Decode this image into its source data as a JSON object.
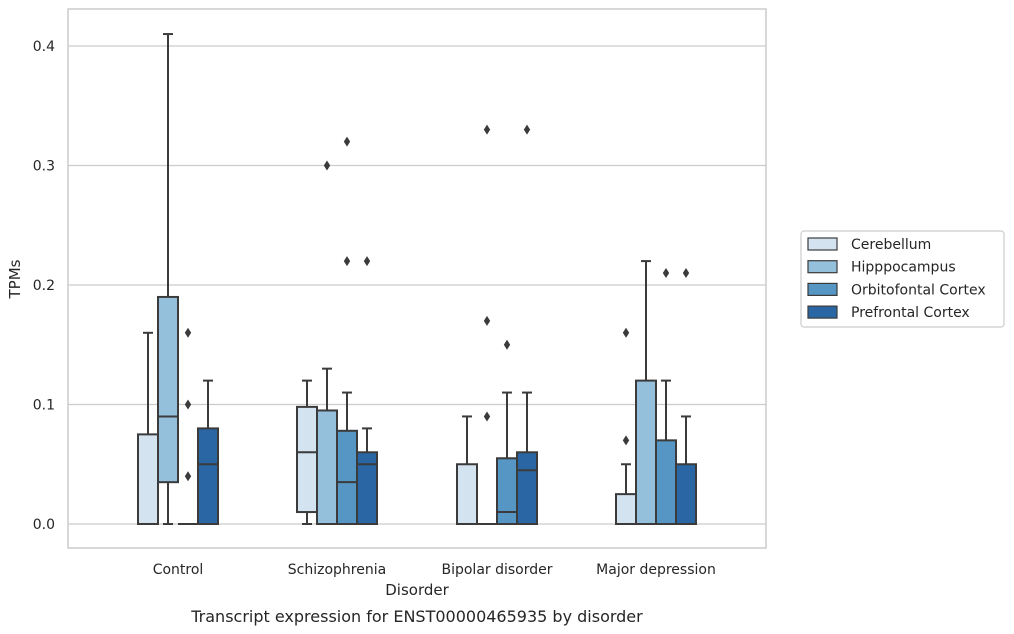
{
  "chart_data": {
    "type": "box",
    "xlabel": "Disorder",
    "ylabel": "TPMs",
    "caption": "Transcript expression for ENST00000465935 by disorder",
    "ylim": [
      -0.02,
      0.43
    ],
    "yticks": [
      0.0,
      0.1,
      0.2,
      0.3,
      0.4
    ],
    "ytick_labels": [
      "0.0",
      "0.1",
      "0.2",
      "0.3",
      "0.4"
    ],
    "grid": "horizontal",
    "legend_position": "right",
    "categories": [
      "Control",
      "Schizophrenia",
      "Bipolar disorder",
      "Major depression"
    ],
    "series": [
      {
        "name": "Cerebellum",
        "color": "#d4e3f0",
        "boxes": [
          {
            "min": 0.0,
            "q1": 0.0,
            "median": 0.0,
            "q3": 0.075,
            "max": 0.16,
            "outliers": []
          },
          {
            "min": 0.0,
            "q1": 0.01,
            "median": 0.06,
            "q3": 0.098,
            "max": 0.12,
            "outliers": []
          },
          {
            "min": 0.0,
            "q1": 0.0,
            "median": 0.0,
            "q3": 0.05,
            "max": 0.09,
            "outliers": []
          },
          {
            "min": 0.0,
            "q1": 0.0,
            "median": 0.0,
            "q3": 0.025,
            "max": 0.05,
            "outliers": [
              0.07,
              0.16
            ]
          }
        ]
      },
      {
        "name": "Hipppocampus",
        "color": "#95c0dc",
        "boxes": [
          {
            "min": 0.0,
            "q1": 0.035,
            "median": 0.09,
            "q3": 0.19,
            "max": 0.41,
            "outliers": []
          },
          {
            "min": 0.0,
            "q1": 0.0,
            "median": 0.0,
            "q3": 0.095,
            "max": 0.13,
            "outliers": [
              0.3
            ]
          },
          {
            "min": 0.0,
            "q1": 0.0,
            "median": 0.0,
            "q3": 0.0,
            "max": 0.0,
            "outliers": [
              0.09,
              0.17,
              0.33
            ]
          },
          {
            "min": 0.0,
            "q1": 0.0,
            "median": 0.0,
            "q3": 0.12,
            "max": 0.22,
            "outliers": []
          }
        ]
      },
      {
        "name": "Orbitofontal Cortex",
        "color": "#5596c4",
        "boxes": [
          {
            "min": 0.0,
            "q1": 0.0,
            "median": 0.0,
            "q3": 0.0,
            "max": 0.0,
            "outliers": [
              0.04,
              0.1,
              0.16
            ]
          },
          {
            "min": 0.0,
            "q1": 0.0,
            "median": 0.035,
            "q3": 0.078,
            "max": 0.11,
            "outliers": [
              0.22,
              0.32
            ]
          },
          {
            "min": 0.0,
            "q1": 0.0,
            "median": 0.01,
            "q3": 0.055,
            "max": 0.11,
            "outliers": [
              0.15
            ]
          },
          {
            "min": 0.0,
            "q1": 0.0,
            "median": 0.0,
            "q3": 0.07,
            "max": 0.12,
            "outliers": [
              0.21
            ]
          }
        ]
      },
      {
        "name": "Prefrontal Cortex",
        "color": "#2a66a4",
        "boxes": [
          {
            "min": 0.0,
            "q1": 0.0,
            "median": 0.05,
            "q3": 0.08,
            "max": 0.12,
            "outliers": []
          },
          {
            "min": 0.0,
            "q1": 0.0,
            "median": 0.05,
            "q3": 0.06,
            "max": 0.08,
            "outliers": [
              0.22
            ]
          },
          {
            "min": 0.0,
            "q1": 0.0,
            "median": 0.045,
            "q3": 0.06,
            "max": 0.11,
            "outliers": [
              0.33
            ]
          },
          {
            "min": 0.0,
            "q1": 0.0,
            "median": 0.0,
            "q3": 0.05,
            "max": 0.09,
            "outliers": [
              0.21
            ]
          }
        ]
      }
    ]
  }
}
